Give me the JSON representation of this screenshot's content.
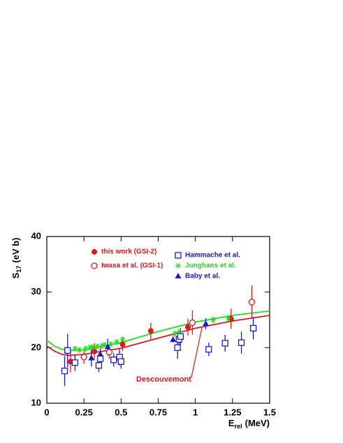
{
  "chart_data": {
    "type": "scatter",
    "x_label": {
      "main": "E",
      "sub": "rel",
      "rest": "(MeV)"
    },
    "y_label": {
      "main": "S",
      "sub": "17",
      "rest": "(eV b)"
    },
    "xlim": [
      0,
      1.5
    ],
    "xticks": [
      0,
      0.25,
      0.5,
      0.75,
      1,
      1.25,
      1.5
    ],
    "ylim": [
      10,
      40
    ],
    "yticks": [
      10,
      20,
      30,
      40
    ],
    "legend": "top",
    "annotation": "Descouvemont",
    "series": [
      {
        "name": "this work (GSI-2)",
        "color": "#e8141c",
        "marker": "filled-circle",
        "x": [
          0.16,
          0.32,
          0.51,
          0.7,
          0.95,
          1.24
        ],
        "values": [
          17.5,
          19.3,
          20.6,
          23.0,
          23.7,
          25.2
        ],
        "errors": [
          2.0,
          1.5,
          1.2,
          1.5,
          1.5,
          1.8
        ]
      },
      {
        "name": "Iwasa et al. (GSI-1)",
        "color": "#e8141c",
        "marker": "open-circle",
        "x": [
          0.25,
          0.42,
          0.98,
          1.38
        ],
        "values": [
          18.3,
          19.2,
          24.5,
          28.2
        ],
        "errors": [
          1.2,
          1.2,
          2.2,
          3.0
        ]
      },
      {
        "name": "Hammache et al.",
        "color": "#1a1acc",
        "marker": "open-square",
        "x": [
          0.12,
          0.14,
          0.19,
          0.35,
          0.36,
          0.45,
          0.49,
          0.5,
          0.88,
          0.89,
          0.9,
          1.09,
          1.2,
          1.31,
          1.39
        ],
        "values": [
          15.8,
          19.5,
          17.3,
          16.8,
          18.0,
          17.8,
          18.3,
          17.5,
          20.0,
          21.5,
          22.0,
          19.7,
          20.8,
          20.9,
          23.5
        ],
        "errors": [
          2.7,
          3.0,
          1.5,
          1.2,
          1.5,
          1.2,
          1.5,
          1.3,
          2.0,
          1.5,
          1.5,
          1.2,
          1.5,
          2.0,
          2.0
        ]
      },
      {
        "name": "Junghans et al.",
        "color": "#22dd22",
        "marker": "asterisk",
        "x": [
          0.19,
          0.22,
          0.26,
          0.29,
          0.31,
          0.34,
          0.37,
          0.39,
          0.43,
          0.47,
          0.51,
          0.86,
          0.89,
          1.12,
          1.22
        ],
        "values": [
          19.8,
          19.6,
          19.8,
          20.0,
          20.1,
          20.2,
          20.3,
          20.5,
          20.6,
          21.0,
          21.5,
          22.5,
          22.8,
          25.0,
          25.3
        ],
        "errors": [
          0.5,
          0.5,
          0.5,
          0.5,
          0.5,
          0.5,
          0.5,
          0.5,
          0.5,
          0.5,
          0.5,
          0.6,
          0.6,
          0.6,
          0.6
        ]
      },
      {
        "name": "Baby et al.",
        "color": "#1a1acc",
        "marker": "triangle",
        "x": [
          0.3,
          0.36,
          0.41,
          0.85,
          1.07
        ],
        "values": [
          18.1,
          18.8,
          20.1,
          21.4,
          24.3
        ],
        "errors": [
          1.5,
          1.2,
          1.5,
          0.5,
          1.0
        ]
      }
    ],
    "curves": [
      {
        "color": "#e8141c",
        "x": [
          0,
          0.05,
          0.1,
          0.15,
          0.25,
          0.5,
          0.75,
          1.0,
          1.25,
          1.5
        ],
        "values": [
          20.3,
          19.4,
          18.8,
          18.6,
          18.8,
          19.9,
          21.7,
          23.5,
          24.8,
          25.8
        ]
      },
      {
        "color": "#22dd22",
        "x": [
          0,
          0.05,
          0.1,
          0.15,
          0.25,
          0.5,
          0.75,
          1.0,
          1.25,
          1.5
        ],
        "values": [
          21.3,
          20.3,
          19.7,
          19.5,
          19.6,
          20.9,
          22.9,
          24.6,
          25.8,
          26.6
        ]
      }
    ]
  }
}
